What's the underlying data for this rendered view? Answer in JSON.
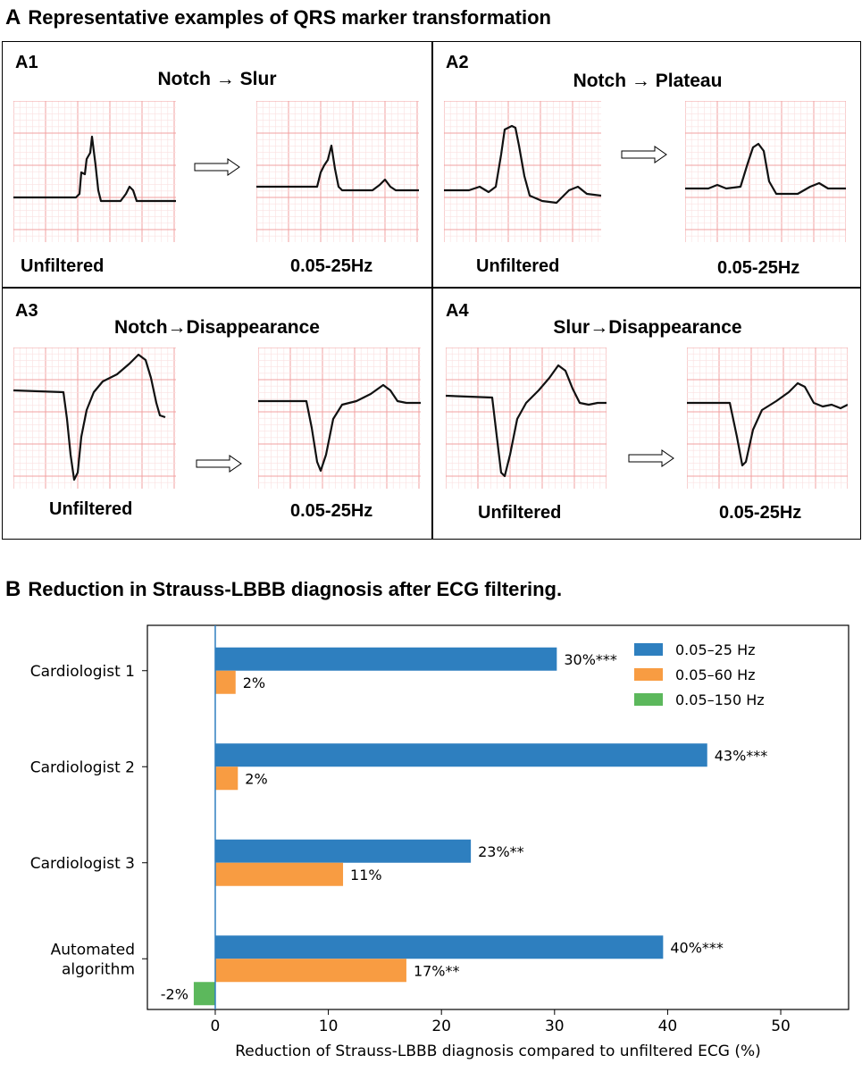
{
  "section_a": {
    "letter": "A",
    "title": "Representative examples of QRS marker transformation",
    "panels": [
      {
        "label": "A1",
        "title": "Notch → Slur",
        "left_caption": "Unfiltered",
        "right_caption": "0.05-25Hz"
      },
      {
        "label": "A2",
        "title": "Notch → Plateau",
        "left_caption": "Unfiltered",
        "right_caption": "0.05-25Hz"
      },
      {
        "label": "A3",
        "title": "Notch→Disappearance",
        "left_caption": "Unfiltered",
        "right_caption": "0.05-25Hz"
      },
      {
        "label": "A4",
        "title": "Slur→Disappearance",
        "left_caption": "Unfiltered",
        "right_caption": "0.05-25Hz"
      }
    ],
    "colors": {
      "grid_major": "#f2a0a0",
      "grid_minor": "#fbe0e0",
      "trace": "#111111"
    }
  },
  "section_b": {
    "letter": "B",
    "title": "Reduction in Strauss-LBBB diagnosis after ECG filtering."
  },
  "chart_data": {
    "type": "bar",
    "orientation": "horizontal",
    "categories": [
      "Cardiologist 1",
      "Cardiologist 2",
      "Cardiologist 3",
      "Automated\nalgorithm"
    ],
    "series": [
      {
        "name": "0.05–25 Hz",
        "color": "#2e7fbf",
        "values": [
          30.2,
          43.5,
          22.6,
          39.6
        ],
        "labels": [
          "30%***",
          "43%***",
          "23%**",
          "40%***"
        ]
      },
      {
        "name": "0.05–60 Hz",
        "color": "#f89c42",
        "values": [
          1.8,
          2.0,
          11.3,
          16.9
        ],
        "labels": [
          "2%",
          "2%",
          "11%",
          "17%**"
        ]
      },
      {
        "name": "0.05–150 Hz",
        "color": "#5cb85c",
        "values": [
          0,
          0,
          0,
          -1.9
        ],
        "labels": [
          "",
          "",
          "",
          "-2%"
        ]
      }
    ],
    "xlabel": "Reduction of Strauss-LBBB diagnosis compared to unfiltered ECG (%)",
    "xticks": [
      0,
      10,
      20,
      30,
      40,
      50
    ],
    "xlim": [
      -6,
      56
    ],
    "zero_line_color": "#2e7fbf",
    "legend": "top-right",
    "grid": false
  }
}
